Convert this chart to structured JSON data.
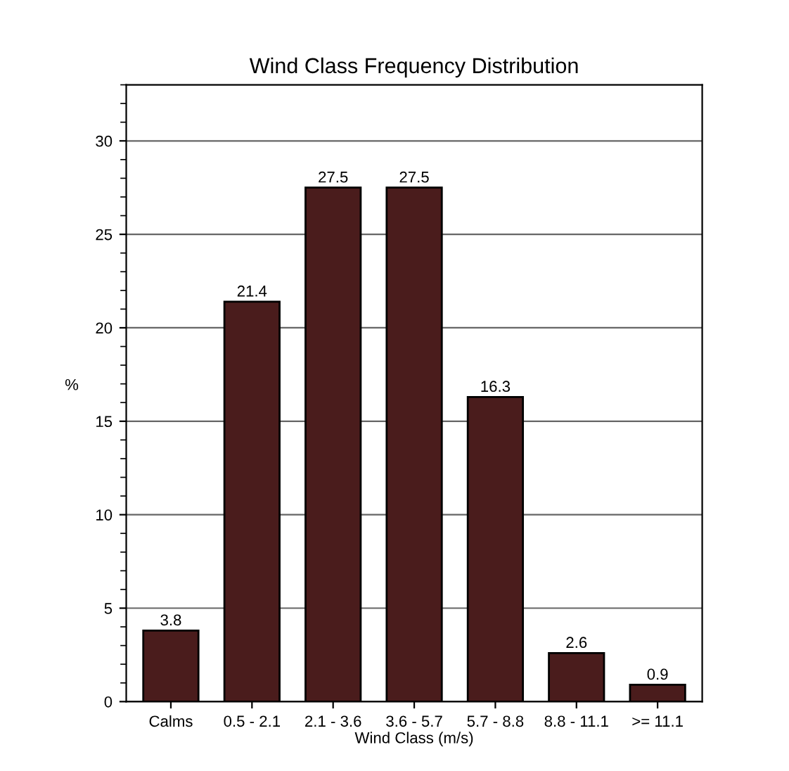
{
  "chart_data": {
    "type": "bar",
    "title": "Wind Class Frequency Distribution",
    "xlabel": "Wind Class (m/s)",
    "ylabel": "%",
    "categories": [
      "Calms",
      "0.5 - 2.1",
      "2.1 - 3.6",
      "3.6 - 5.7",
      "5.7 - 8.8",
      "8.8 - 11.1",
      ">= 11.1"
    ],
    "values": [
      3.8,
      21.4,
      27.5,
      27.5,
      16.3,
      2.6,
      0.9
    ],
    "color": "#4a1c1c",
    "data_labels": true,
    "ylim": [
      0,
      33
    ],
    "yticks": [
      0,
      5,
      10,
      15,
      20,
      25,
      30
    ],
    "grid": "y"
  }
}
